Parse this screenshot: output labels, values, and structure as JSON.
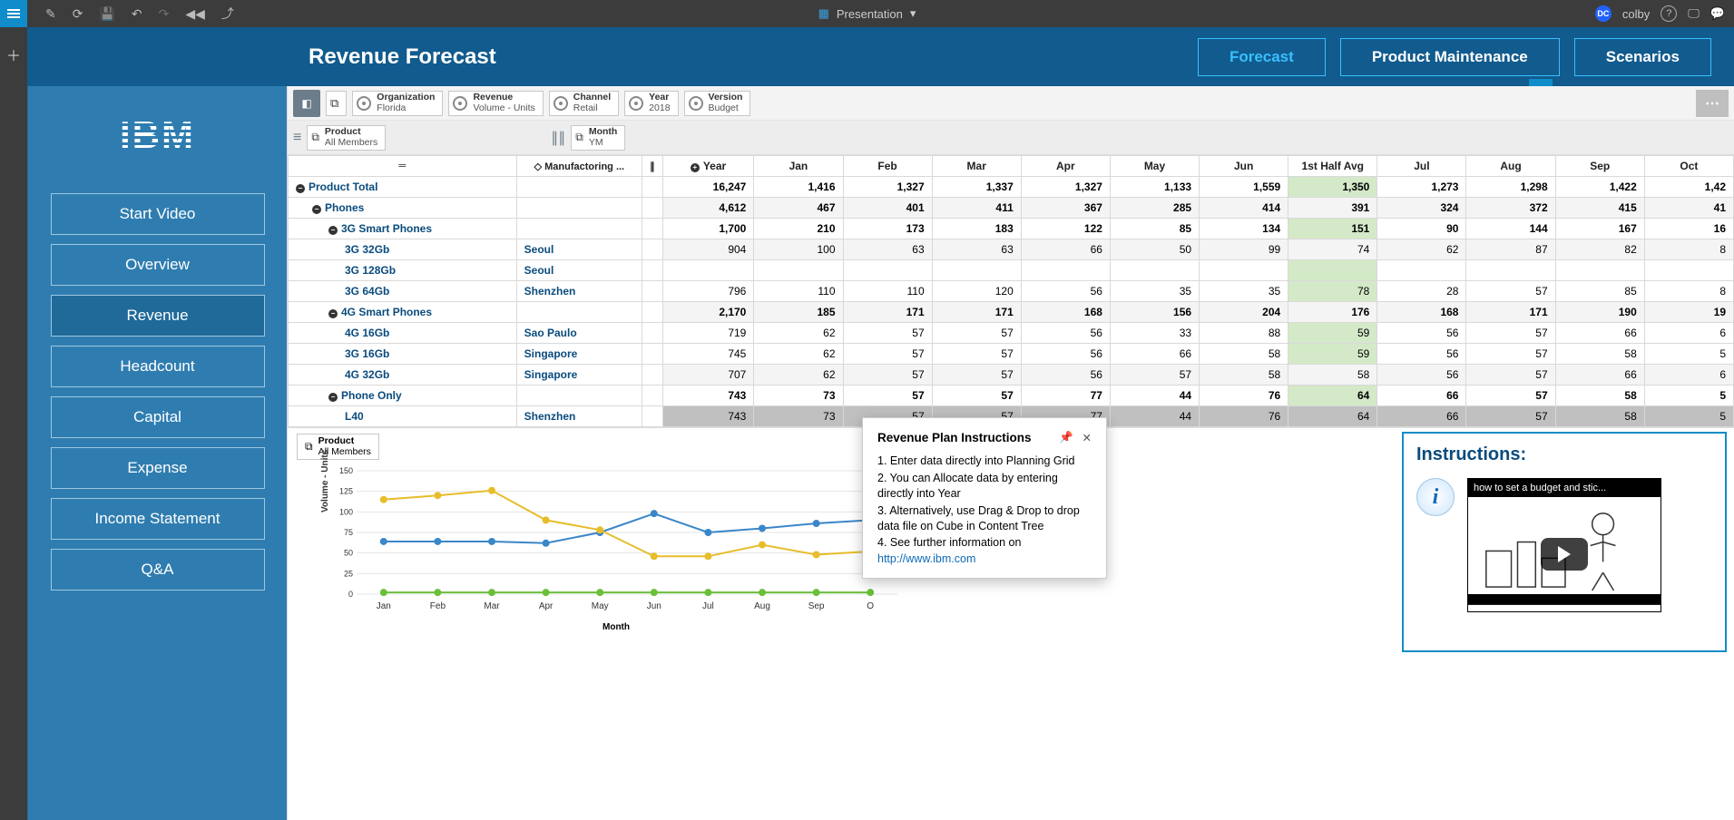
{
  "toolbar": {
    "mode_label": "Presentation",
    "user": "colby",
    "dc": "DC"
  },
  "header": {
    "title": "Revenue Forecast",
    "tabs": [
      "Forecast",
      "Product Maintenance",
      "Scenarios"
    ],
    "active_tab": 0
  },
  "sidebar": {
    "logo": "IBM",
    "items": [
      "Start Video",
      "Overview",
      "Revenue",
      "Headcount",
      "Capital",
      "Expense",
      "Income Statement",
      "Q&A"
    ],
    "selected": 2
  },
  "dims": {
    "org": {
      "label": "Organization",
      "value": "Florida"
    },
    "rev": {
      "label": "Revenue",
      "value": "Volume - Units"
    },
    "chan": {
      "label": "Channel",
      "value": "Retail"
    },
    "year": {
      "label": "Year",
      "value": "2018"
    },
    "ver": {
      "label": "Version",
      "value": "Budget"
    },
    "prod": {
      "label": "Product",
      "value": "All Members"
    },
    "month": {
      "label": "Month",
      "value": "YM"
    }
  },
  "grid": {
    "mfg_header": "Manufactoring ...",
    "year_header": "Year",
    "months": [
      "Jan",
      "Feb",
      "Mar",
      "Apr",
      "May",
      "Jun",
      "1st Half Avg",
      "Jul",
      "Aug",
      "Sep",
      "Oct"
    ],
    "avg_col_index": 6,
    "rows": [
      {
        "label": "Product Total",
        "indent": 0,
        "exp": "-",
        "mfg": "",
        "bold": true,
        "shade": false,
        "vals": [
          "16,247",
          "1,416",
          "1,327",
          "1,337",
          "1,327",
          "1,133",
          "1,559",
          "1,350",
          "1,273",
          "1,298",
          "1,422",
          "1,42"
        ]
      },
      {
        "label": "Phones",
        "indent": 1,
        "exp": "-",
        "mfg": "",
        "bold": true,
        "shade": true,
        "vals": [
          "4,612",
          "467",
          "401",
          "411",
          "367",
          "285",
          "414",
          "391",
          "324",
          "372",
          "415",
          "41"
        ]
      },
      {
        "label": "3G Smart Phones",
        "indent": 2,
        "exp": "-",
        "mfg": "",
        "bold": true,
        "shade": false,
        "vals": [
          "1,700",
          "210",
          "173",
          "183",
          "122",
          "85",
          "134",
          "151",
          "90",
          "144",
          "167",
          "16"
        ]
      },
      {
        "label": "3G 32Gb",
        "indent": 3,
        "exp": "",
        "mfg": "Seoul",
        "bold": false,
        "shade": true,
        "vals": [
          "904",
          "100",
          "63",
          "63",
          "66",
          "50",
          "99",
          "74",
          "62",
          "87",
          "82",
          "8"
        ]
      },
      {
        "label": "3G 128Gb",
        "indent": 3,
        "exp": "",
        "mfg": "Seoul",
        "bold": false,
        "shade": false,
        "vals": [
          "",
          "",
          "",
          "",
          "",
          "",
          "",
          "",
          "",
          "",
          "",
          ""
        ]
      },
      {
        "label": "3G 64Gb",
        "indent": 3,
        "exp": "",
        "mfg": "Shenzhen",
        "bold": false,
        "shade": false,
        "vals": [
          "796",
          "110",
          "110",
          "120",
          "56",
          "35",
          "35",
          "78",
          "28",
          "57",
          "85",
          "8"
        ]
      },
      {
        "label": "4G Smart Phones",
        "indent": 2,
        "exp": "-",
        "mfg": "",
        "bold": true,
        "shade": true,
        "vals": [
          "2,170",
          "185",
          "171",
          "171",
          "168",
          "156",
          "204",
          "176",
          "168",
          "171",
          "190",
          "19"
        ]
      },
      {
        "label": "4G 16Gb",
        "indent": 3,
        "exp": "",
        "mfg": "Sao Paulo",
        "bold": false,
        "shade": false,
        "vals": [
          "719",
          "62",
          "57",
          "57",
          "56",
          "33",
          "88",
          "59",
          "56",
          "57",
          "66",
          "6"
        ]
      },
      {
        "label": "3G 16Gb",
        "indent": 3,
        "exp": "",
        "mfg": "Singapore",
        "bold": false,
        "shade": false,
        "vals": [
          "745",
          "62",
          "57",
          "57",
          "56",
          "66",
          "58",
          "59",
          "56",
          "57",
          "58",
          "5"
        ]
      },
      {
        "label": "4G 32Gb",
        "indent": 3,
        "exp": "",
        "mfg": "Singapore",
        "bold": false,
        "shade": true,
        "vals": [
          "707",
          "62",
          "57",
          "57",
          "56",
          "57",
          "58",
          "58",
          "56",
          "57",
          "66",
          "6"
        ]
      },
      {
        "label": "Phone Only",
        "indent": 2,
        "exp": "-",
        "mfg": "",
        "bold": true,
        "shade": false,
        "vals": [
          "743",
          "73",
          "57",
          "57",
          "77",
          "44",
          "76",
          "64",
          "66",
          "57",
          "58",
          "5"
        ]
      },
      {
        "label": "L40",
        "indent": 3,
        "exp": "",
        "mfg": "Shenzhen",
        "bold": false,
        "shade": false,
        "scroll": true,
        "vals": [
          "743",
          "73",
          "57",
          "57",
          "77",
          "44",
          "76",
          "64",
          "66",
          "57",
          "58",
          "5"
        ]
      }
    ]
  },
  "chart": {
    "product_selector": {
      "label": "Product",
      "value": "All Members"
    },
    "ylabel": "Volume - Units",
    "xlabel": "Month",
    "ylim": [
      0,
      150
    ],
    "ytick_step": 25,
    "categories": [
      "Jan",
      "Feb",
      "Mar",
      "Apr",
      "May",
      "Jun",
      "Jul",
      "Aug",
      "Sep",
      "O"
    ],
    "series": [
      {
        "name": "blue",
        "color": "#3a86c8",
        "marker": "circle",
        "values": [
          64,
          64,
          64,
          62,
          75,
          98,
          75,
          80,
          86,
          90
        ]
      },
      {
        "name": "yellow",
        "color": "#e7bd2a",
        "marker": "circle",
        "values": [
          115,
          120,
          126,
          90,
          78,
          46,
          46,
          60,
          48,
          52
        ]
      },
      {
        "name": "green",
        "color": "#6bbf3a",
        "marker": "circle",
        "values": [
          2,
          2,
          2,
          2,
          2,
          2,
          2,
          2,
          2,
          2
        ]
      }
    ],
    "background": "#ffffff",
    "grid_color": "#e5e5e5",
    "line_width": 2,
    "marker_size": 4
  },
  "popup": {
    "title": "Revenue Plan Instructions",
    "lines": [
      "1. Enter data directly into Planning Grid",
      "2. You can Allocate data by entering directly into Year",
      "3. Alternatively, use Drag & Drop to drop data file on Cube in Content Tree",
      "4. See further information on"
    ],
    "link": "http://www.ibm.com"
  },
  "instructions_box": {
    "title": "Instructions:",
    "video_caption": "how to set a budget and stic..."
  }
}
